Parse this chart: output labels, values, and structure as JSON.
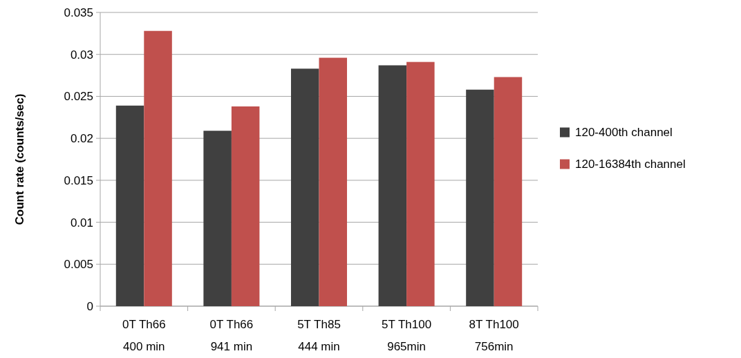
{
  "chart_data": {
    "type": "bar",
    "ylabel": "Count  rate (counts/sec)",
    "categories": [
      "0T Th66\n400 min",
      "0T Th66\n941 min",
      "5T Th85\n444 min",
      "5T Th100\n965min",
      "8T Th100\n756min"
    ],
    "series": [
      {
        "name": "120-400th channel",
        "color": "#404040",
        "values": [
          0.0239,
          0.0209,
          0.0283,
          0.0287,
          0.0258
        ]
      },
      {
        "name": "120-16384th channel",
        "color": "#c0504d",
        "values": [
          0.0328,
          0.0238,
          0.0296,
          0.0291,
          0.0273
        ]
      }
    ],
    "ylim": [
      0,
      0.035
    ],
    "yticks": [
      0,
      0.005,
      0.01,
      0.015,
      0.02,
      0.025,
      0.03,
      0.035
    ],
    "grid": "y",
    "legend": "right"
  }
}
